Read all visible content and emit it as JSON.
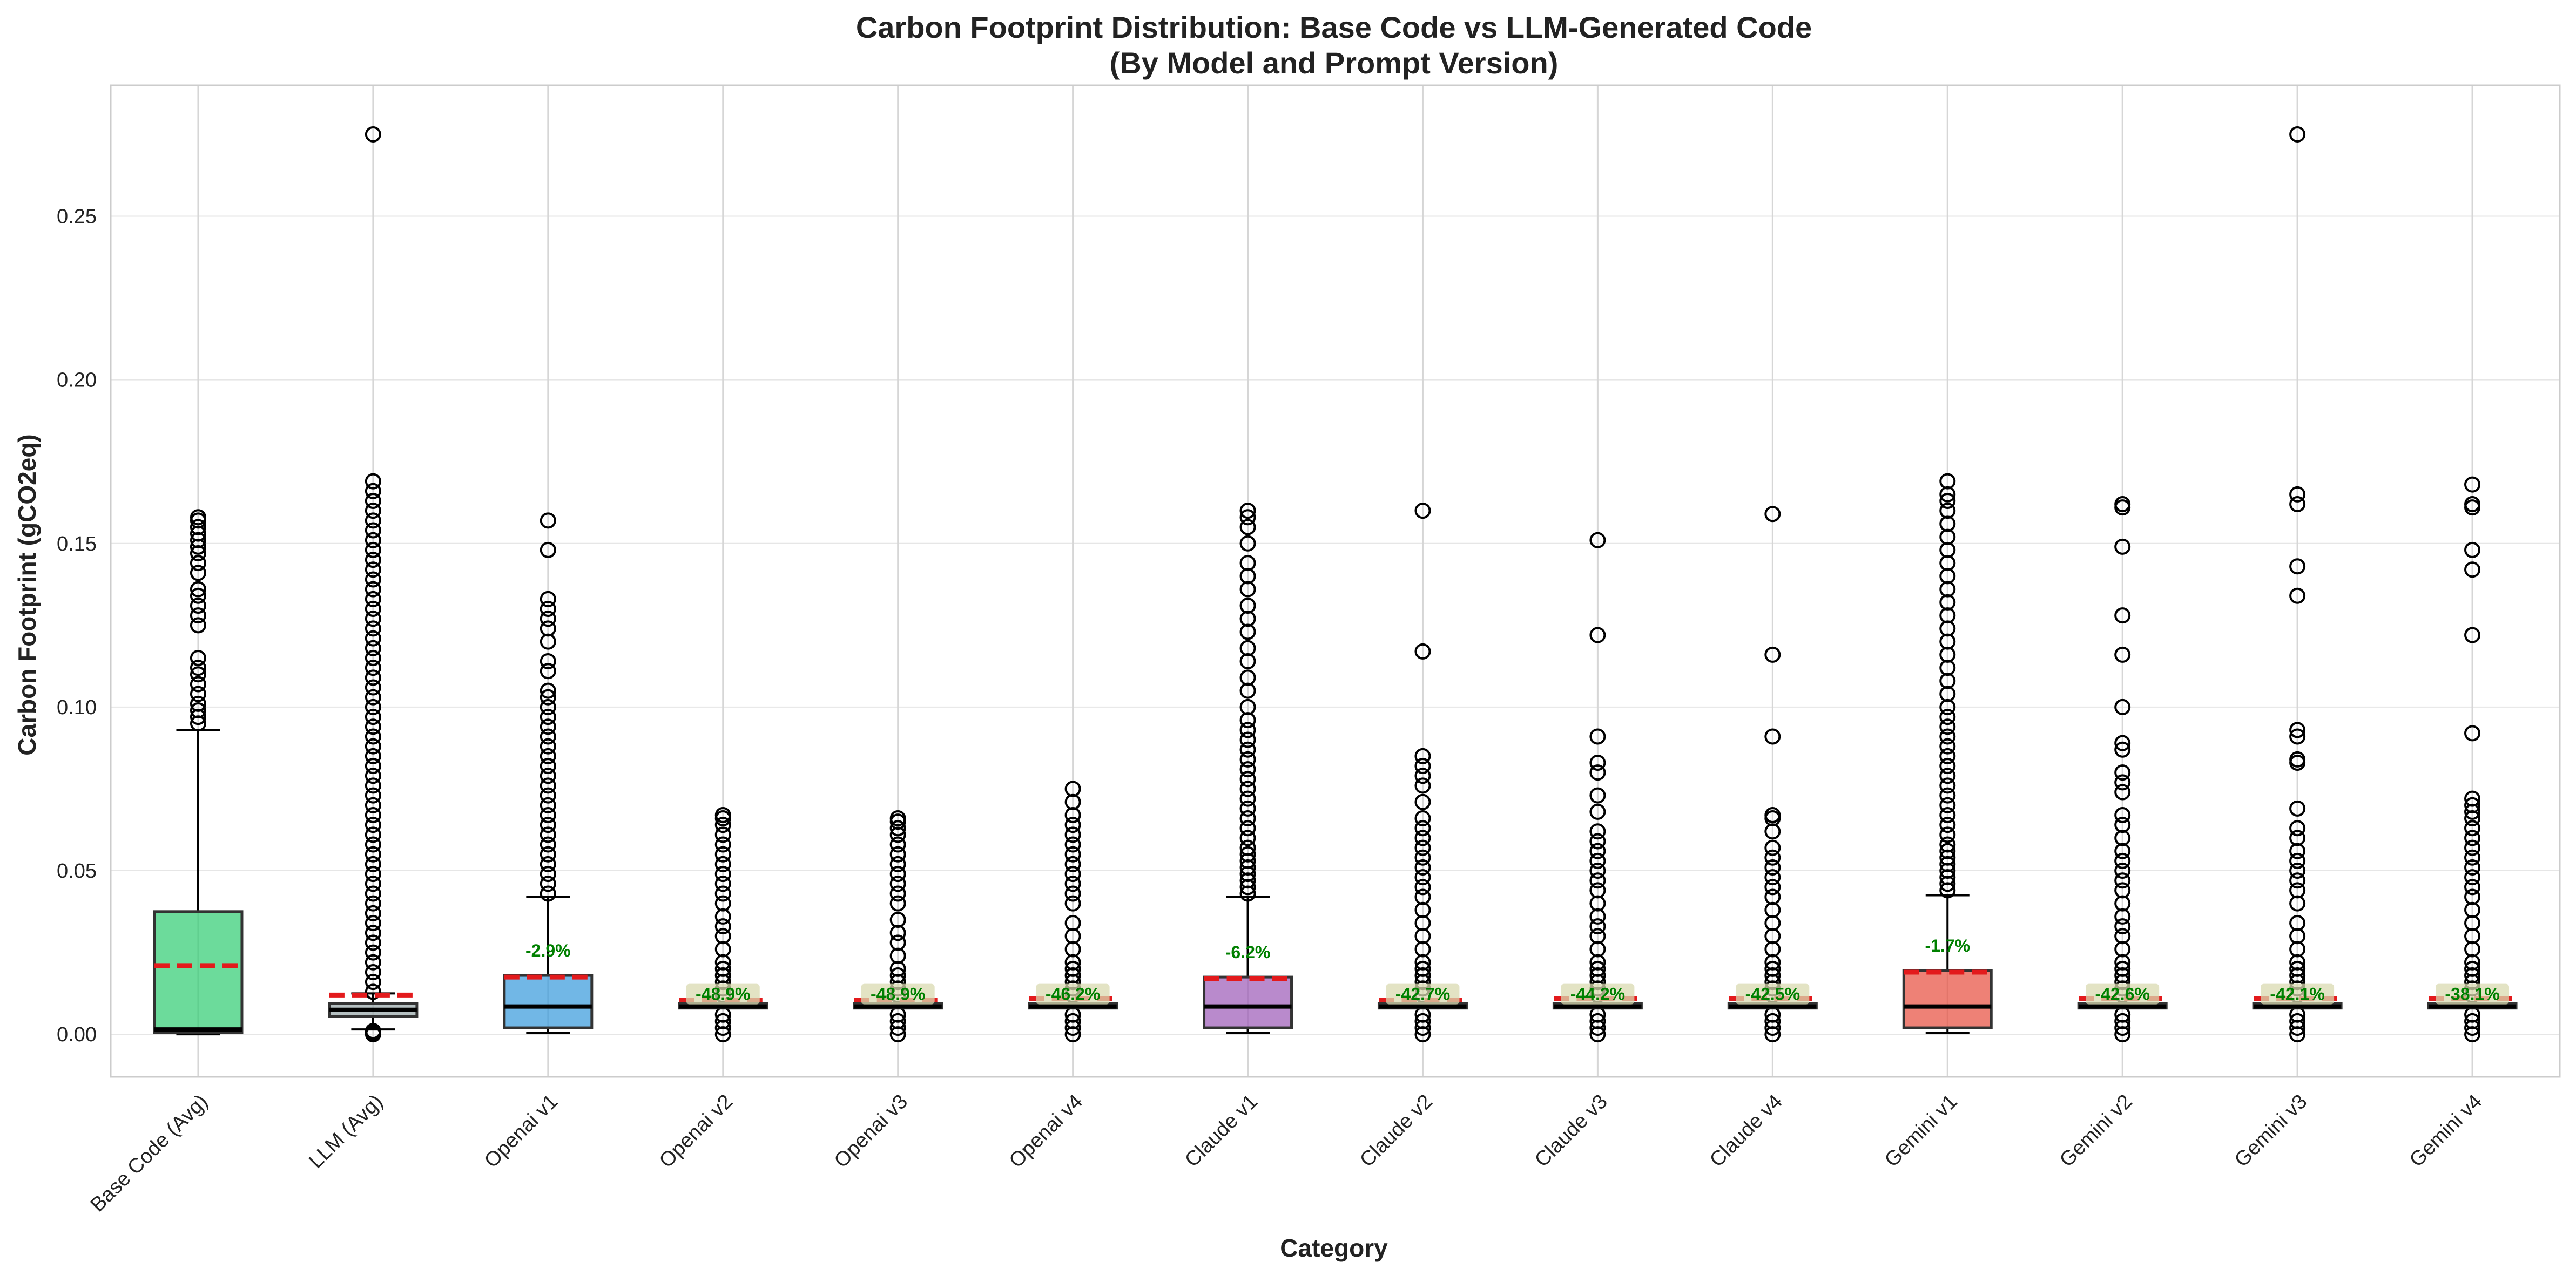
{
  "chart_data": {
    "type": "box",
    "title": "Carbon Footprint Distribution: Base Code vs LLM-Generated Code",
    "subtitle": "(By Model and Prompt Version)",
    "xlabel": "Category",
    "ylabel": "Carbon Footprint (gCO2eq)",
    "ylim": [
      -0.013,
      0.29
    ],
    "yticks": [
      0.0,
      0.05,
      0.1,
      0.15,
      0.2,
      0.25
    ],
    "ytick_labels": [
      "0.00",
      "0.05",
      "0.10",
      "0.15",
      "0.20",
      "0.25"
    ],
    "grid": true,
    "mean_line_style": "red dashed",
    "median_line_style": "black solid",
    "change_label_color": "#008000",
    "categories": [
      {
        "name": "Base Code (Avg)",
        "color": "#2ecc71",
        "q1": 0.0005,
        "median": 0.0015,
        "q3": 0.0375,
        "whisker_low": 0.0,
        "whisker_high": 0.093,
        "mean": 0.021,
        "change_label": "",
        "outliers": [
          0.095,
          0.097,
          0.099,
          0.101,
          0.104,
          0.107,
          0.11,
          0.112,
          0.115,
          0.125,
          0.128,
          0.131,
          0.134,
          0.136,
          0.141,
          0.144,
          0.147,
          0.149,
          0.151,
          0.153,
          0.155,
          0.157,
          0.158
        ]
      },
      {
        "name": "LLM (Avg)",
        "color": "#95a5a6",
        "q1": 0.0055,
        "median": 0.0075,
        "q3": 0.0095,
        "whisker_low": 0.0015,
        "whisker_high": 0.0125,
        "mean": 0.012,
        "change_label": "",
        "outliers": [
          0.0,
          0.0005,
          0.001,
          0.013,
          0.016,
          0.019,
          0.022,
          0.025,
          0.028,
          0.031,
          0.034,
          0.037,
          0.04,
          0.043,
          0.046,
          0.049,
          0.052,
          0.055,
          0.058,
          0.061,
          0.064,
          0.067,
          0.07,
          0.073,
          0.076,
          0.079,
          0.082,
          0.085,
          0.088,
          0.091,
          0.094,
          0.097,
          0.1,
          0.103,
          0.106,
          0.109,
          0.112,
          0.115,
          0.118,
          0.121,
          0.124,
          0.127,
          0.13,
          0.133,
          0.136,
          0.139,
          0.142,
          0.145,
          0.148,
          0.151,
          0.154,
          0.157,
          0.16,
          0.163,
          0.166,
          0.169,
          0.275
        ]
      },
      {
        "name": "Openai v1",
        "color": "#3498db",
        "q1": 0.002,
        "median": 0.0085,
        "q3": 0.018,
        "whisker_low": 0.0005,
        "whisker_high": 0.042,
        "mean": 0.0175,
        "change_label": "-2.9%",
        "outliers": [
          0.043,
          0.046,
          0.049,
          0.052,
          0.055,
          0.058,
          0.061,
          0.064,
          0.067,
          0.07,
          0.073,
          0.076,
          0.079,
          0.082,
          0.085,
          0.088,
          0.091,
          0.094,
          0.097,
          0.1,
          0.103,
          0.105,
          0.111,
          0.114,
          0.12,
          0.124,
          0.127,
          0.13,
          0.133,
          0.148,
          0.157
        ]
      },
      {
        "name": "Openai v2",
        "color": "#3498db",
        "q1": 0.008,
        "median": 0.0085,
        "q3": 0.0095,
        "whisker_low": 0.008,
        "whisker_high": 0.0095,
        "mean": 0.0105,
        "change_label": "-48.9%",
        "outliers": [
          0.0,
          0.002,
          0.004,
          0.006,
          0.012,
          0.014,
          0.016,
          0.018,
          0.02,
          0.022,
          0.026,
          0.03,
          0.033,
          0.036,
          0.04,
          0.043,
          0.046,
          0.049,
          0.052,
          0.055,
          0.058,
          0.061,
          0.064,
          0.066,
          0.067
        ]
      },
      {
        "name": "Openai v3",
        "color": "#3498db",
        "q1": 0.008,
        "median": 0.0085,
        "q3": 0.0095,
        "whisker_low": 0.008,
        "whisker_high": 0.0095,
        "mean": 0.0105,
        "change_label": "-48.9%",
        "outliers": [
          0.0,
          0.002,
          0.004,
          0.006,
          0.012,
          0.014,
          0.016,
          0.018,
          0.02,
          0.024,
          0.028,
          0.031,
          0.035,
          0.04,
          0.043,
          0.046,
          0.049,
          0.052,
          0.055,
          0.058,
          0.061,
          0.063,
          0.065,
          0.066
        ]
      },
      {
        "name": "Openai v4",
        "color": "#3498db",
        "q1": 0.008,
        "median": 0.0085,
        "q3": 0.0095,
        "whisker_low": 0.008,
        "whisker_high": 0.0095,
        "mean": 0.011,
        "change_label": "-46.2%",
        "outliers": [
          0.0,
          0.002,
          0.004,
          0.006,
          0.012,
          0.014,
          0.016,
          0.018,
          0.02,
          0.022,
          0.026,
          0.03,
          0.034,
          0.04,
          0.043,
          0.046,
          0.049,
          0.052,
          0.055,
          0.058,
          0.061,
          0.064,
          0.067,
          0.071,
          0.075
        ]
      },
      {
        "name": "Claude v1",
        "color": "#9b59b6",
        "q1": 0.002,
        "median": 0.0085,
        "q3": 0.0175,
        "whisker_low": 0.0005,
        "whisker_high": 0.042,
        "mean": 0.017,
        "change_label": "-6.2%",
        "outliers": [
          0.043,
          0.045,
          0.047,
          0.049,
          0.051,
          0.053,
          0.055,
          0.057,
          0.06,
          0.063,
          0.066,
          0.069,
          0.072,
          0.075,
          0.078,
          0.081,
          0.084,
          0.087,
          0.09,
          0.093,
          0.096,
          0.1,
          0.105,
          0.109,
          0.114,
          0.118,
          0.123,
          0.127,
          0.131,
          0.136,
          0.14,
          0.144,
          0.15,
          0.155,
          0.158,
          0.16
        ]
      },
      {
        "name": "Claude v2",
        "color": "#9b59b6",
        "q1": 0.008,
        "median": 0.0085,
        "q3": 0.0095,
        "whisker_low": 0.008,
        "whisker_high": 0.0095,
        "mean": 0.0105,
        "change_label": "-42.7%",
        "outliers": [
          0.0,
          0.002,
          0.004,
          0.006,
          0.012,
          0.014,
          0.016,
          0.018,
          0.02,
          0.022,
          0.026,
          0.03,
          0.034,
          0.038,
          0.042,
          0.045,
          0.048,
          0.051,
          0.054,
          0.057,
          0.06,
          0.063,
          0.066,
          0.071,
          0.076,
          0.079,
          0.082,
          0.085,
          0.117,
          0.16
        ]
      },
      {
        "name": "Claude v3",
        "color": "#9b59b6",
        "q1": 0.008,
        "median": 0.0085,
        "q3": 0.0095,
        "whisker_low": 0.008,
        "whisker_high": 0.0095,
        "mean": 0.011,
        "change_label": "-44.2%",
        "outliers": [
          0.0,
          0.002,
          0.004,
          0.006,
          0.012,
          0.014,
          0.016,
          0.018,
          0.02,
          0.022,
          0.026,
          0.03,
          0.033,
          0.036,
          0.04,
          0.044,
          0.047,
          0.05,
          0.053,
          0.056,
          0.059,
          0.062,
          0.068,
          0.073,
          0.08,
          0.083,
          0.091,
          0.122,
          0.151
        ]
      },
      {
        "name": "Claude v4",
        "color": "#9b59b6",
        "q1": 0.008,
        "median": 0.0085,
        "q3": 0.0095,
        "whisker_low": 0.008,
        "whisker_high": 0.0095,
        "mean": 0.011,
        "change_label": "-42.5%",
        "outliers": [
          0.0,
          0.002,
          0.004,
          0.006,
          0.012,
          0.014,
          0.016,
          0.018,
          0.02,
          0.022,
          0.026,
          0.03,
          0.034,
          0.038,
          0.042,
          0.045,
          0.048,
          0.051,
          0.054,
          0.057,
          0.062,
          0.066,
          0.067,
          0.091,
          0.116,
          0.159
        ]
      },
      {
        "name": "Gemini v1",
        "color": "#e74c3c",
        "q1": 0.002,
        "median": 0.0085,
        "q3": 0.0195,
        "whisker_low": 0.0005,
        "whisker_high": 0.0425,
        "mean": 0.019,
        "change_label": "-1.7%",
        "outliers": [
          0.044,
          0.046,
          0.048,
          0.05,
          0.052,
          0.054,
          0.056,
          0.058,
          0.061,
          0.064,
          0.067,
          0.07,
          0.073,
          0.076,
          0.079,
          0.082,
          0.085,
          0.088,
          0.091,
          0.094,
          0.097,
          0.1,
          0.104,
          0.108,
          0.112,
          0.116,
          0.12,
          0.124,
          0.128,
          0.132,
          0.136,
          0.14,
          0.144,
          0.148,
          0.152,
          0.156,
          0.16,
          0.163,
          0.165,
          0.169
        ]
      },
      {
        "name": "Gemini v2",
        "color": "#e74c3c",
        "q1": 0.008,
        "median": 0.0085,
        "q3": 0.0095,
        "whisker_low": 0.008,
        "whisker_high": 0.0095,
        "mean": 0.011,
        "change_label": "-42.6%",
        "outliers": [
          0.0,
          0.002,
          0.004,
          0.006,
          0.012,
          0.014,
          0.016,
          0.018,
          0.02,
          0.022,
          0.026,
          0.03,
          0.033,
          0.036,
          0.04,
          0.044,
          0.047,
          0.05,
          0.053,
          0.056,
          0.06,
          0.064,
          0.067,
          0.074,
          0.077,
          0.08,
          0.087,
          0.089,
          0.1,
          0.116,
          0.128,
          0.149,
          0.161,
          0.162
        ]
      },
      {
        "name": "Gemini v3",
        "color": "#e74c3c",
        "q1": 0.008,
        "median": 0.0085,
        "q3": 0.0095,
        "whisker_low": 0.008,
        "whisker_high": 0.0095,
        "mean": 0.011,
        "change_label": "-42.1%",
        "outliers": [
          0.0,
          0.002,
          0.004,
          0.006,
          0.012,
          0.014,
          0.016,
          0.018,
          0.02,
          0.022,
          0.026,
          0.03,
          0.034,
          0.04,
          0.044,
          0.047,
          0.05,
          0.053,
          0.056,
          0.06,
          0.063,
          0.069,
          0.083,
          0.084,
          0.091,
          0.093,
          0.134,
          0.143,
          0.162,
          0.165,
          0.275
        ]
      },
      {
        "name": "Gemini v4",
        "color": "#e74c3c",
        "q1": 0.008,
        "median": 0.0085,
        "q3": 0.0095,
        "whisker_low": 0.008,
        "whisker_high": 0.0095,
        "mean": 0.011,
        "change_label": "-38.1%",
        "outliers": [
          0.0,
          0.002,
          0.004,
          0.006,
          0.012,
          0.014,
          0.016,
          0.018,
          0.02,
          0.022,
          0.026,
          0.03,
          0.034,
          0.038,
          0.042,
          0.045,
          0.048,
          0.051,
          0.054,
          0.057,
          0.06,
          0.063,
          0.066,
          0.068,
          0.07,
          0.072,
          0.092,
          0.122,
          0.142,
          0.148,
          0.161,
          0.162,
          0.168
        ]
      }
    ]
  }
}
